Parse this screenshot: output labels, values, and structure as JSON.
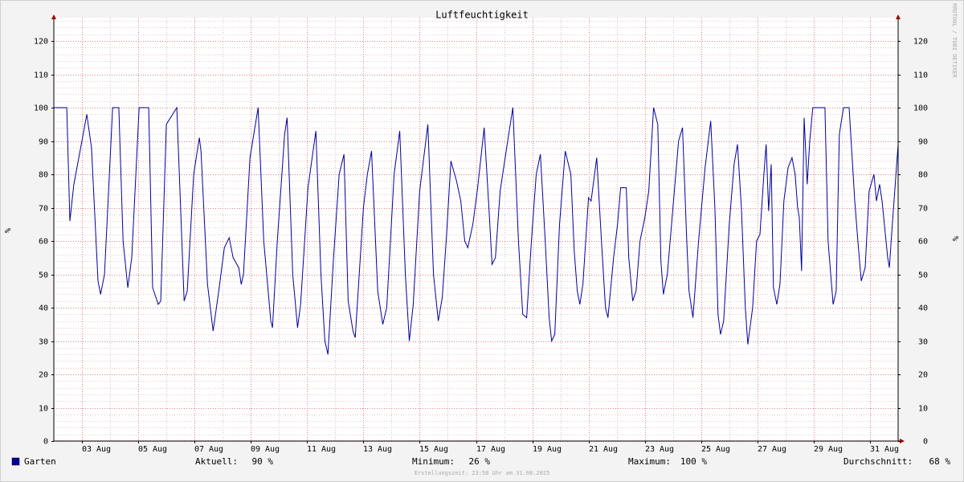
{
  "chart_data": {
    "type": "line",
    "title": "Luftfeuchtigkeit",
    "y_label": "%",
    "y2_label": "%",
    "watermark": "RRDTOOL / TOBI OETIKER",
    "footer": "Erstellungszeit: 23:58 Uhr am 31.08.2025",
    "xlim": [
      2,
      32
    ],
    "ylim": [
      0,
      127
    ],
    "y2lim": [
      0,
      127
    ],
    "xticks": [
      {
        "value": 3,
        "label": "03 Aug"
      },
      {
        "value": 5,
        "label": "05 Aug"
      },
      {
        "value": 7,
        "label": "07 Aug"
      },
      {
        "value": 9,
        "label": "09 Aug"
      },
      {
        "value": 11,
        "label": "11 Aug"
      },
      {
        "value": 13,
        "label": "13 Aug"
      },
      {
        "value": 15,
        "label": "15 Aug"
      },
      {
        "value": 17,
        "label": "17 Aug"
      },
      {
        "value": 19,
        "label": "19 Aug"
      },
      {
        "value": 21,
        "label": "21 Aug"
      },
      {
        "value": 23,
        "label": "23 Aug"
      },
      {
        "value": 25,
        "label": "25 Aug"
      },
      {
        "value": 27,
        "label": "27 Aug"
      },
      {
        "value": 29,
        "label": "29 Aug"
      },
      {
        "value": 31,
        "label": "31 Aug"
      }
    ],
    "xminorticks": [
      4,
      6,
      8,
      10,
      12,
      14,
      16,
      18,
      20,
      22,
      24,
      26,
      28,
      30
    ],
    "yticks": [
      0,
      10,
      20,
      30,
      40,
      50,
      60,
      70,
      80,
      90,
      100,
      110,
      120
    ],
    "y2ticks": [
      0,
      10,
      20,
      30,
      40,
      50,
      60,
      70,
      80,
      90,
      100,
      110,
      120
    ],
    "yminorticks": [
      2,
      4,
      6,
      8,
      12,
      14,
      16,
      18,
      22,
      24,
      26,
      28,
      32,
      34,
      36,
      38,
      42,
      44,
      46,
      48,
      52,
      54,
      56,
      58,
      62,
      64,
      66,
      68,
      72,
      74,
      76,
      78,
      82,
      84,
      86,
      88,
      92,
      94,
      96,
      98,
      102,
      104,
      106,
      108,
      112,
      114,
      116,
      118,
      122,
      124,
      126
    ],
    "grid": true,
    "x": [
      2.0,
      2.46,
      2.57,
      2.71,
      3.0,
      3.17,
      3.34,
      3.57,
      3.66,
      3.8,
      4.09,
      4.31,
      4.46,
      4.63,
      4.77,
      5.03,
      5.37,
      5.51,
      5.71,
      5.8,
      6.0,
      6.37,
      6.63,
      6.74,
      6.97,
      7.17,
      7.23,
      7.46,
      7.66,
      7.86,
      8.06,
      8.23,
      8.37,
      8.57,
      8.66,
      8.74,
      8.97,
      9.26,
      9.46,
      9.71,
      9.77,
      9.94,
      10.2,
      10.29,
      10.49,
      10.66,
      10.77,
      11.03,
      11.31,
      11.49,
      11.63,
      11.74,
      11.94,
      12.14,
      12.31,
      12.46,
      12.63,
      12.71,
      13.0,
      13.14,
      13.29,
      13.51,
      13.69,
      13.83,
      14.09,
      14.29,
      14.49,
      14.63,
      14.77,
      15.0,
      15.29,
      15.49,
      15.66,
      15.8,
      15.94,
      16.11,
      16.31,
      16.46,
      16.6,
      16.71,
      16.89,
      17.06,
      17.29,
      17.46,
      17.57,
      17.69,
      17.86,
      18.09,
      18.31,
      18.51,
      18.66,
      18.8,
      18.97,
      19.14,
      19.29,
      19.46,
      19.6,
      19.69,
      19.8,
      19.97,
      20.17,
      20.37,
      20.49,
      20.6,
      20.69,
      20.8,
      21.0,
      21.09,
      21.29,
      21.46,
      21.6,
      21.69,
      21.89,
      22.03,
      22.14,
      22.34,
      22.43,
      22.57,
      22.69,
      22.83,
      23.0,
      23.14,
      23.31,
      23.46,
      23.57,
      23.66,
      23.8,
      24.0,
      24.2,
      24.34,
      24.49,
      24.57,
      24.71,
      24.91,
      25.14,
      25.34,
      25.49,
      25.6,
      25.69,
      25.8,
      26.0,
      26.17,
      26.29,
      26.43,
      26.57,
      26.66,
      26.83,
      26.97,
      27.09,
      27.23,
      27.31,
      27.4,
      27.49,
      27.57,
      27.69,
      27.8,
      27.94,
      28.09,
      28.23,
      28.34,
      28.43,
      28.49,
      28.57,
      28.66,
      28.77,
      28.86,
      28.97,
      29.4,
      29.51,
      29.69,
      29.8,
      29.91,
      30.06,
      30.26,
      30.46,
      30.57,
      30.69,
      30.83,
      30.97,
      31.14,
      31.23,
      31.34,
      31.43,
      31.63,
      31.69,
      31.77,
      32.0
    ],
    "series": [
      {
        "name": "Garten",
        "color": "#0000a0",
        "values": [
          100,
          100,
          66,
          77,
          90,
          98,
          88,
          48,
          44,
          50,
          100,
          100,
          60,
          46,
          55,
          100,
          100,
          46,
          41,
          42,
          95,
          100,
          42,
          45,
          80,
          91,
          87,
          47,
          33,
          45,
          58,
          61,
          55,
          52,
          47,
          50,
          85,
          100,
          60,
          36,
          34,
          60,
          92,
          97,
          50,
          34,
          41,
          76,
          93,
          50,
          30,
          26,
          55,
          80,
          86,
          42,
          33,
          31,
          70,
          80,
          87,
          45,
          35,
          40,
          80,
          93,
          50,
          30,
          41,
          75,
          95,
          50,
          36,
          43,
          60,
          84,
          78,
          72,
          60,
          58,
          65,
          76,
          94,
          70,
          53,
          55,
          75,
          88,
          100,
          60,
          38,
          37,
          60,
          80,
          86,
          60,
          37,
          30,
          32,
          65,
          87,
          80,
          57,
          45,
          41,
          47,
          73,
          72,
          85,
          60,
          40,
          37,
          55,
          65,
          76,
          76,
          55,
          42,
          45,
          60,
          67,
          75,
          100,
          95,
          54,
          44,
          50,
          70,
          90,
          94,
          60,
          45,
          37,
          60,
          82,
          96,
          70,
          38,
          32,
          36,
          65,
          83,
          89,
          70,
          40,
          29,
          40,
          60,
          62,
          80,
          89,
          69,
          83,
          46,
          41,
          47,
          72,
          82,
          85,
          80,
          70,
          67,
          51,
          97,
          77,
          90,
          100,
          100,
          60,
          41,
          45,
          92,
          100,
          100,
          72,
          60,
          48,
          52,
          75,
          80,
          72,
          77,
          72,
          55,
          52,
          62,
          89
        ]
      }
    ],
    "stats": [
      {
        "label": "Aktuell:",
        "value": 90,
        "value_label": "90 %"
      },
      {
        "label": "Minimum:",
        "value": 26,
        "value_label": "26 %"
      },
      {
        "label": "Maximum:",
        "value": 100,
        "value_label": "100 %"
      },
      {
        "label": "Durchschnitt:",
        "value": 68,
        "value_label": "68 %"
      }
    ]
  }
}
